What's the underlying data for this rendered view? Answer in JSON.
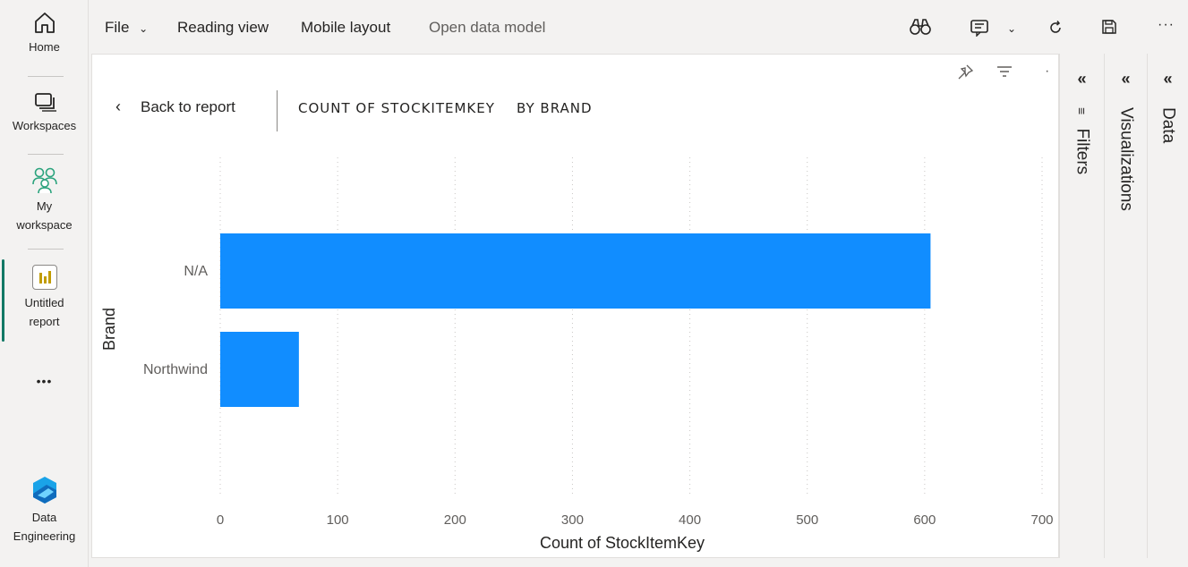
{
  "nav": {
    "home": "Home",
    "workspaces": "Workspaces",
    "my_workspace_line1": "My",
    "my_workspace_line2": "workspace",
    "report_line1": "Untitled",
    "report_line2": "report",
    "more": "•••",
    "de_line1": "Data",
    "de_line2": "Engineering"
  },
  "toolbar": {
    "file": "File",
    "reading_view": "Reading view",
    "mobile_layout": "Mobile layout",
    "open_data_model": "Open data model"
  },
  "visual": {
    "back_label": "Back to report",
    "breadcrumb_main": "COUNT OF STOCKITEMKEY",
    "breadcrumb_sub": "BY BRAND"
  },
  "panes": {
    "filters": "Filters",
    "visualizations": "Visualizations",
    "data": "Data"
  },
  "colors": {
    "bar": "#118dff",
    "accent": "#117865"
  },
  "chart_data": {
    "type": "bar",
    "orientation": "horizontal",
    "categories": [
      "N/A",
      "Northwind"
    ],
    "values": [
      605,
      67
    ],
    "xlabel": "Count of StockItemKey",
    "ylabel": "Brand",
    "xlim": [
      0,
      700
    ],
    "x_ticks": [
      0,
      100,
      200,
      300,
      400,
      500,
      600,
      700
    ],
    "grid": true
  }
}
